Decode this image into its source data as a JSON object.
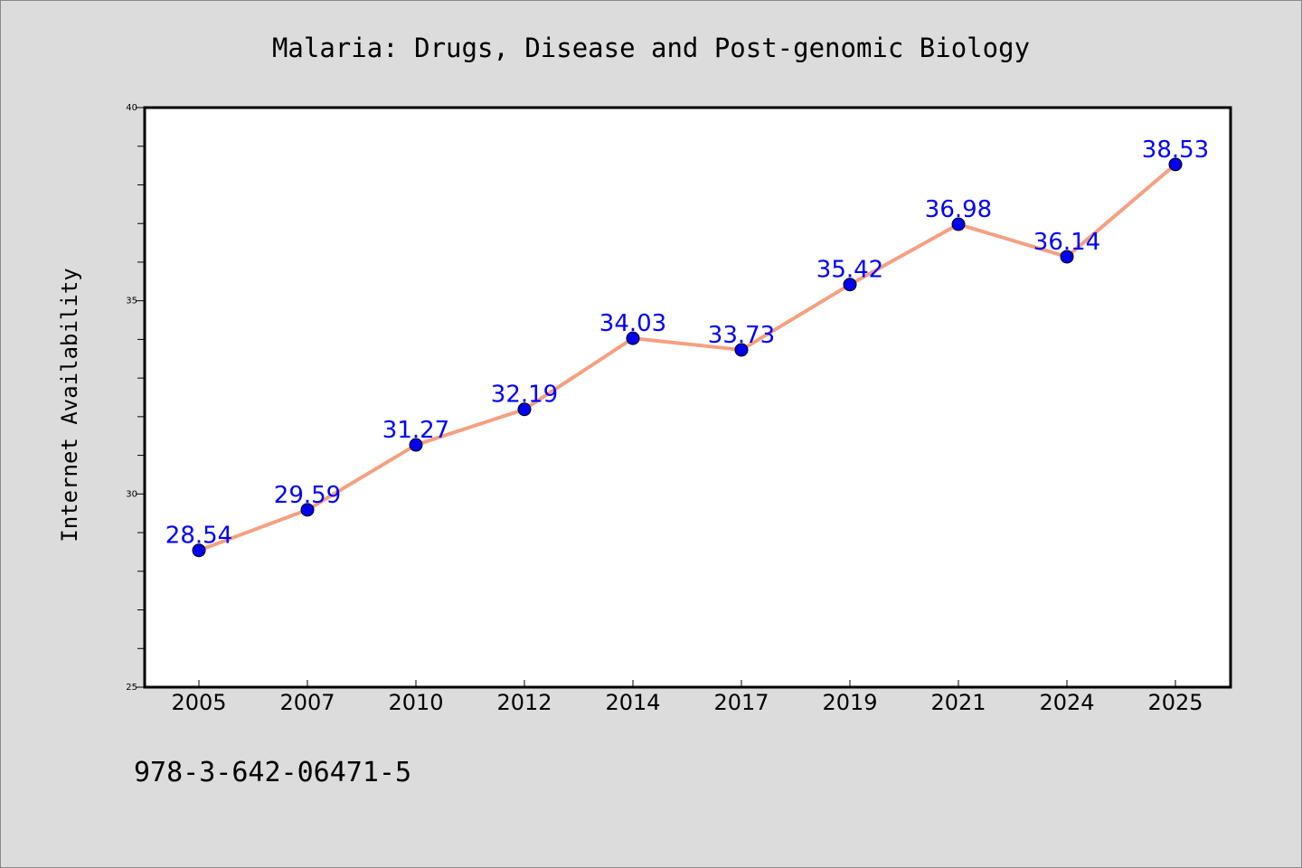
{
  "chart_data": {
    "type": "line",
    "title": "Malaria: Drugs, Disease and Post-genomic Biology",
    "xlabel": "",
    "ylabel": "Internet Availability",
    "categories": [
      "2005",
      "2007",
      "2010",
      "2012",
      "2014",
      "2017",
      "2019",
      "2021",
      "2024",
      "2025"
    ],
    "series": [
      {
        "values": [
          28.54,
          29.59,
          31.27,
          32.19,
          34.03,
          33.73,
          35.42,
          36.98,
          36.14,
          38.53
        ],
        "data_labels": [
          "28.54",
          "29.59",
          "31.27",
          "32.19",
          "34.03",
          "33.73",
          "35.42",
          "36.98",
          "36.14",
          "38.53"
        ],
        "line_color": "#f4a081",
        "marker_color": "#0000ee"
      }
    ],
    "ylim": [
      25,
      40
    ],
    "yticks": [
      "25",
      "30",
      "35",
      "40"
    ],
    "grid": false,
    "legend": "none"
  },
  "footer": {
    "isbn": "978-3-642-06471-5"
  }
}
